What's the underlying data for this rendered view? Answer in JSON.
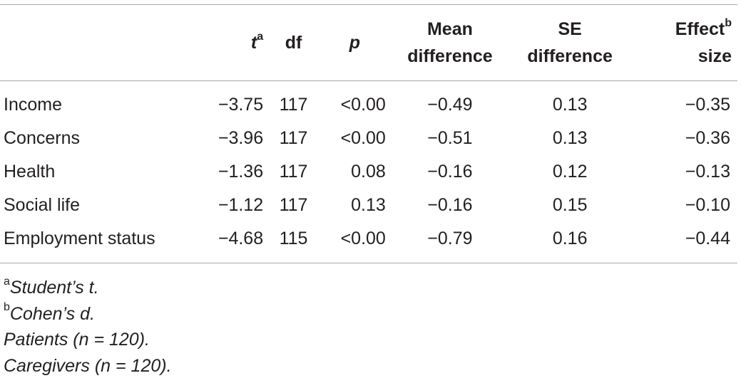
{
  "table": {
    "headers": {
      "variable": "",
      "t": "t",
      "t_note": "a",
      "df": "df",
      "p": "p",
      "mean_diff_line1": "Mean",
      "mean_diff_line2": "difference",
      "se_line1": "SE",
      "se_line2": "difference",
      "effect_line1": "Effect",
      "effect_note": "b",
      "effect_line2": "size"
    },
    "rows": [
      {
        "variable": "Income",
        "t": "−3.75",
        "df": "117",
        "p": "<0.00",
        "mean_difference": "−0.49",
        "se_difference": "0.13",
        "effect_size": "−0.35"
      },
      {
        "variable": "Concerns",
        "t": "−3.96",
        "df": "117",
        "p": "<0.00",
        "mean_difference": "−0.51",
        "se_difference": "0.13",
        "effect_size": "−0.36"
      },
      {
        "variable": "Health",
        "t": "−1.36",
        "df": "117",
        "p": "0.08",
        "mean_difference": "−0.16",
        "se_difference": "0.12",
        "effect_size": "−0.13"
      },
      {
        "variable": "Social life",
        "t": "−1.12",
        "df": "117",
        "p": "0.13",
        "mean_difference": "−0.16",
        "se_difference": "0.15",
        "effect_size": "−0.10"
      },
      {
        "variable": "Employment status",
        "t": "−4.68",
        "df": "115",
        "p": "<0.00",
        "mean_difference": "−0.79",
        "se_difference": "0.16",
        "effect_size": "−0.44"
      }
    ]
  },
  "footnotes": [
    {
      "mark": "a",
      "text": "Student’s t."
    },
    {
      "mark": "b",
      "text": "Cohen’s d."
    },
    {
      "mark": "",
      "text": "Patients (n = 120)."
    },
    {
      "mark": "",
      "text": "Caregivers (n = 120)."
    }
  ],
  "colors": {
    "text": "#231f20",
    "rule": "#a7a9ac",
    "background": "#ffffff"
  }
}
